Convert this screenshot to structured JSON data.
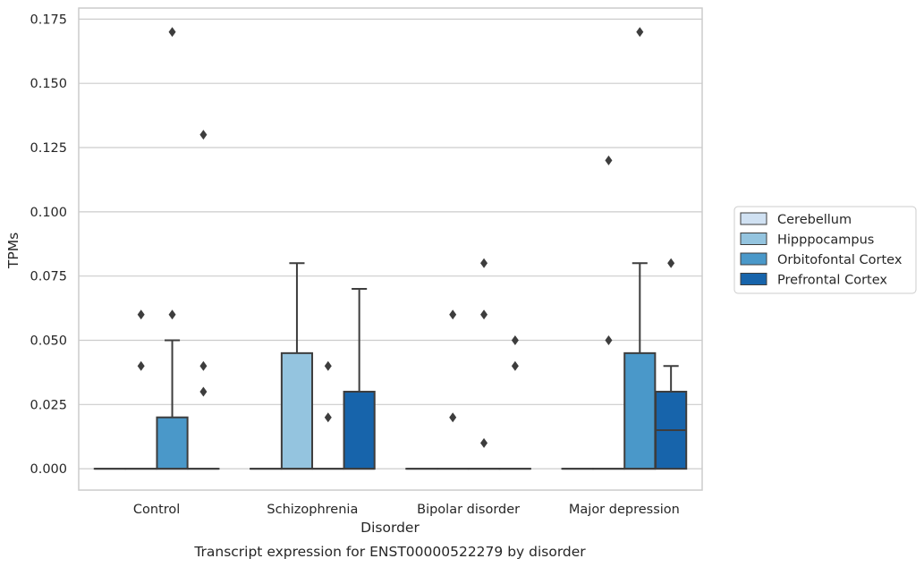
{
  "chart_data": {
    "type": "box",
    "caption": "Transcript expression for ENST00000522279 by disorder",
    "xlabel": "Disorder",
    "ylabel": "TPMs",
    "ylim": [
      -0.0083,
      0.1793
    ],
    "yticks": [
      0.0,
      0.025,
      0.05,
      0.075,
      0.1,
      0.125,
      0.15,
      0.175
    ],
    "ytick_labels": [
      "0.000",
      "0.025",
      "0.050",
      "0.075",
      "0.100",
      "0.125",
      "0.150",
      "0.175"
    ],
    "categories": [
      "Control",
      "Schizophrenia",
      "Bipolar disorder",
      "Major depression"
    ],
    "grid": "horizontal",
    "legend_position": "right",
    "series": [
      {
        "name": "Cerebellum",
        "color": "#d0e1f2",
        "boxes": [
          {
            "min": 0,
            "q1": 0,
            "median": 0,
            "q3": 0,
            "max": 0,
            "outliers": []
          },
          {
            "min": 0,
            "q1": 0,
            "median": 0,
            "q3": 0,
            "max": 0,
            "outliers": []
          },
          {
            "min": 0,
            "q1": 0,
            "median": 0,
            "q3": 0,
            "max": 0,
            "outliers": []
          },
          {
            "min": 0,
            "q1": 0,
            "median": 0,
            "q3": 0,
            "max": 0,
            "outliers": []
          }
        ]
      },
      {
        "name": "Hipppocampus",
        "color": "#94c4df",
        "boxes": [
          {
            "min": 0,
            "q1": 0,
            "median": 0,
            "q3": 0,
            "max": 0,
            "outliers": [
              0.04,
              0.06
            ]
          },
          {
            "min": 0,
            "q1": 0,
            "median": 0,
            "q3": 0.045,
            "max": 0.08,
            "outliers": []
          },
          {
            "min": 0,
            "q1": 0,
            "median": 0,
            "q3": 0,
            "max": 0,
            "outliers": [
              0.02,
              0.06
            ]
          },
          {
            "min": 0,
            "q1": 0,
            "median": 0,
            "q3": 0,
            "max": 0,
            "outliers": [
              0.05,
              0.12
            ]
          }
        ]
      },
      {
        "name": "Orbitofontal Cortex",
        "color": "#4a98c9",
        "boxes": [
          {
            "min": 0,
            "q1": 0,
            "median": 0,
            "q3": 0.02,
            "max": 0.05,
            "outliers": [
              0.06,
              0.17
            ]
          },
          {
            "min": 0,
            "q1": 0,
            "median": 0,
            "q3": 0,
            "max": 0,
            "outliers": [
              0.02,
              0.04
            ]
          },
          {
            "min": 0,
            "q1": 0,
            "median": 0,
            "q3": 0,
            "max": 0,
            "outliers": [
              0.01,
              0.06,
              0.08
            ]
          },
          {
            "min": 0,
            "q1": 0,
            "median": 0,
            "q3": 0.045,
            "max": 0.08,
            "outliers": [
              0.17
            ]
          }
        ]
      },
      {
        "name": "Prefrontal Cortex",
        "color": "#1764ab",
        "boxes": [
          {
            "min": 0,
            "q1": 0,
            "median": 0,
            "q3": 0,
            "max": 0,
            "outliers": [
              0.03,
              0.04,
              0.13
            ]
          },
          {
            "min": 0,
            "q1": 0,
            "median": 0,
            "q3": 0.03,
            "max": 0.07,
            "outliers": []
          },
          {
            "min": 0,
            "q1": 0,
            "median": 0,
            "q3": 0,
            "max": 0,
            "outliers": [
              0.04,
              0.05
            ]
          },
          {
            "min": 0,
            "q1": 0,
            "median": 0.015,
            "q3": 0.03,
            "max": 0.04,
            "outliers": [
              0.08
            ]
          }
        ]
      }
    ]
  }
}
